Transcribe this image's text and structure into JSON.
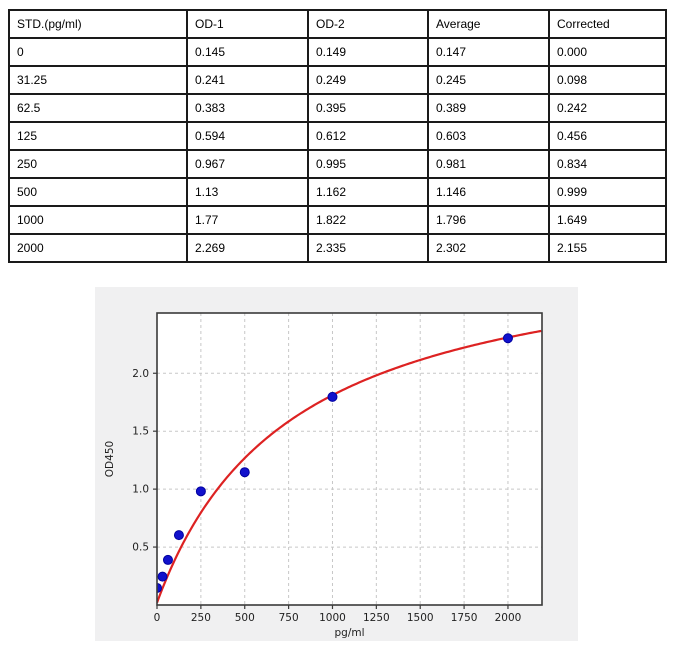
{
  "table": {
    "headers": [
      "STD.(pg/ml)",
      "OD-1",
      "OD-2",
      "Average",
      "Corrected"
    ],
    "rows": [
      [
        "0",
        "0.145",
        "0.149",
        "0.147",
        "0.000"
      ],
      [
        "31.25",
        "0.241",
        "0.249",
        "0.245",
        "0.098"
      ],
      [
        "62.5",
        "0.383",
        "0.395",
        "0.389",
        "0.242"
      ],
      [
        "125",
        "0.594",
        "0.612",
        "0.603",
        "0.456"
      ],
      [
        "250",
        "0.967",
        "0.995",
        "0.981",
        "0.834"
      ],
      [
        "500",
        "1.13",
        "1.162",
        "1.146",
        "0.999"
      ],
      [
        "1000",
        "1.77",
        "1.822",
        "1.796",
        "1.649"
      ],
      [
        "2000",
        "2.269",
        "2.335",
        "2.302",
        "2.155"
      ]
    ]
  },
  "chart_data": {
    "type": "scatter",
    "title": "",
    "xlabel": "pg/ml",
    "ylabel": "OD450",
    "x": [
      0,
      31.25,
      62.5,
      125,
      250,
      500,
      1000,
      2000
    ],
    "y": [
      0.147,
      0.245,
      0.389,
      0.603,
      0.981,
      1.146,
      1.796,
      2.302
    ],
    "fit_curve": {
      "model": "y = offset + vmax*x/(km+x)",
      "vmax": 3.17,
      "km": 770,
      "offset": 0.02
    },
    "xlim": [
      0,
      2194
    ],
    "ylim": [
      0,
      2.52
    ],
    "xticks": [
      "0",
      "250",
      "500",
      "750",
      "1000",
      "1250",
      "1500",
      "1750",
      "2000"
    ],
    "yticks": [
      "0.5",
      "1.0",
      "1.5",
      "2.0"
    ],
    "grid": true,
    "legend": "none",
    "colors": {
      "points": "#1111cc",
      "points_edge": "#0000a0",
      "curve": "#dd2222",
      "panel_bg": "#f0f0f1",
      "plot_bg": "#ffffff",
      "grid": "#c7c7c7",
      "spine": "#3a3a3a"
    }
  }
}
